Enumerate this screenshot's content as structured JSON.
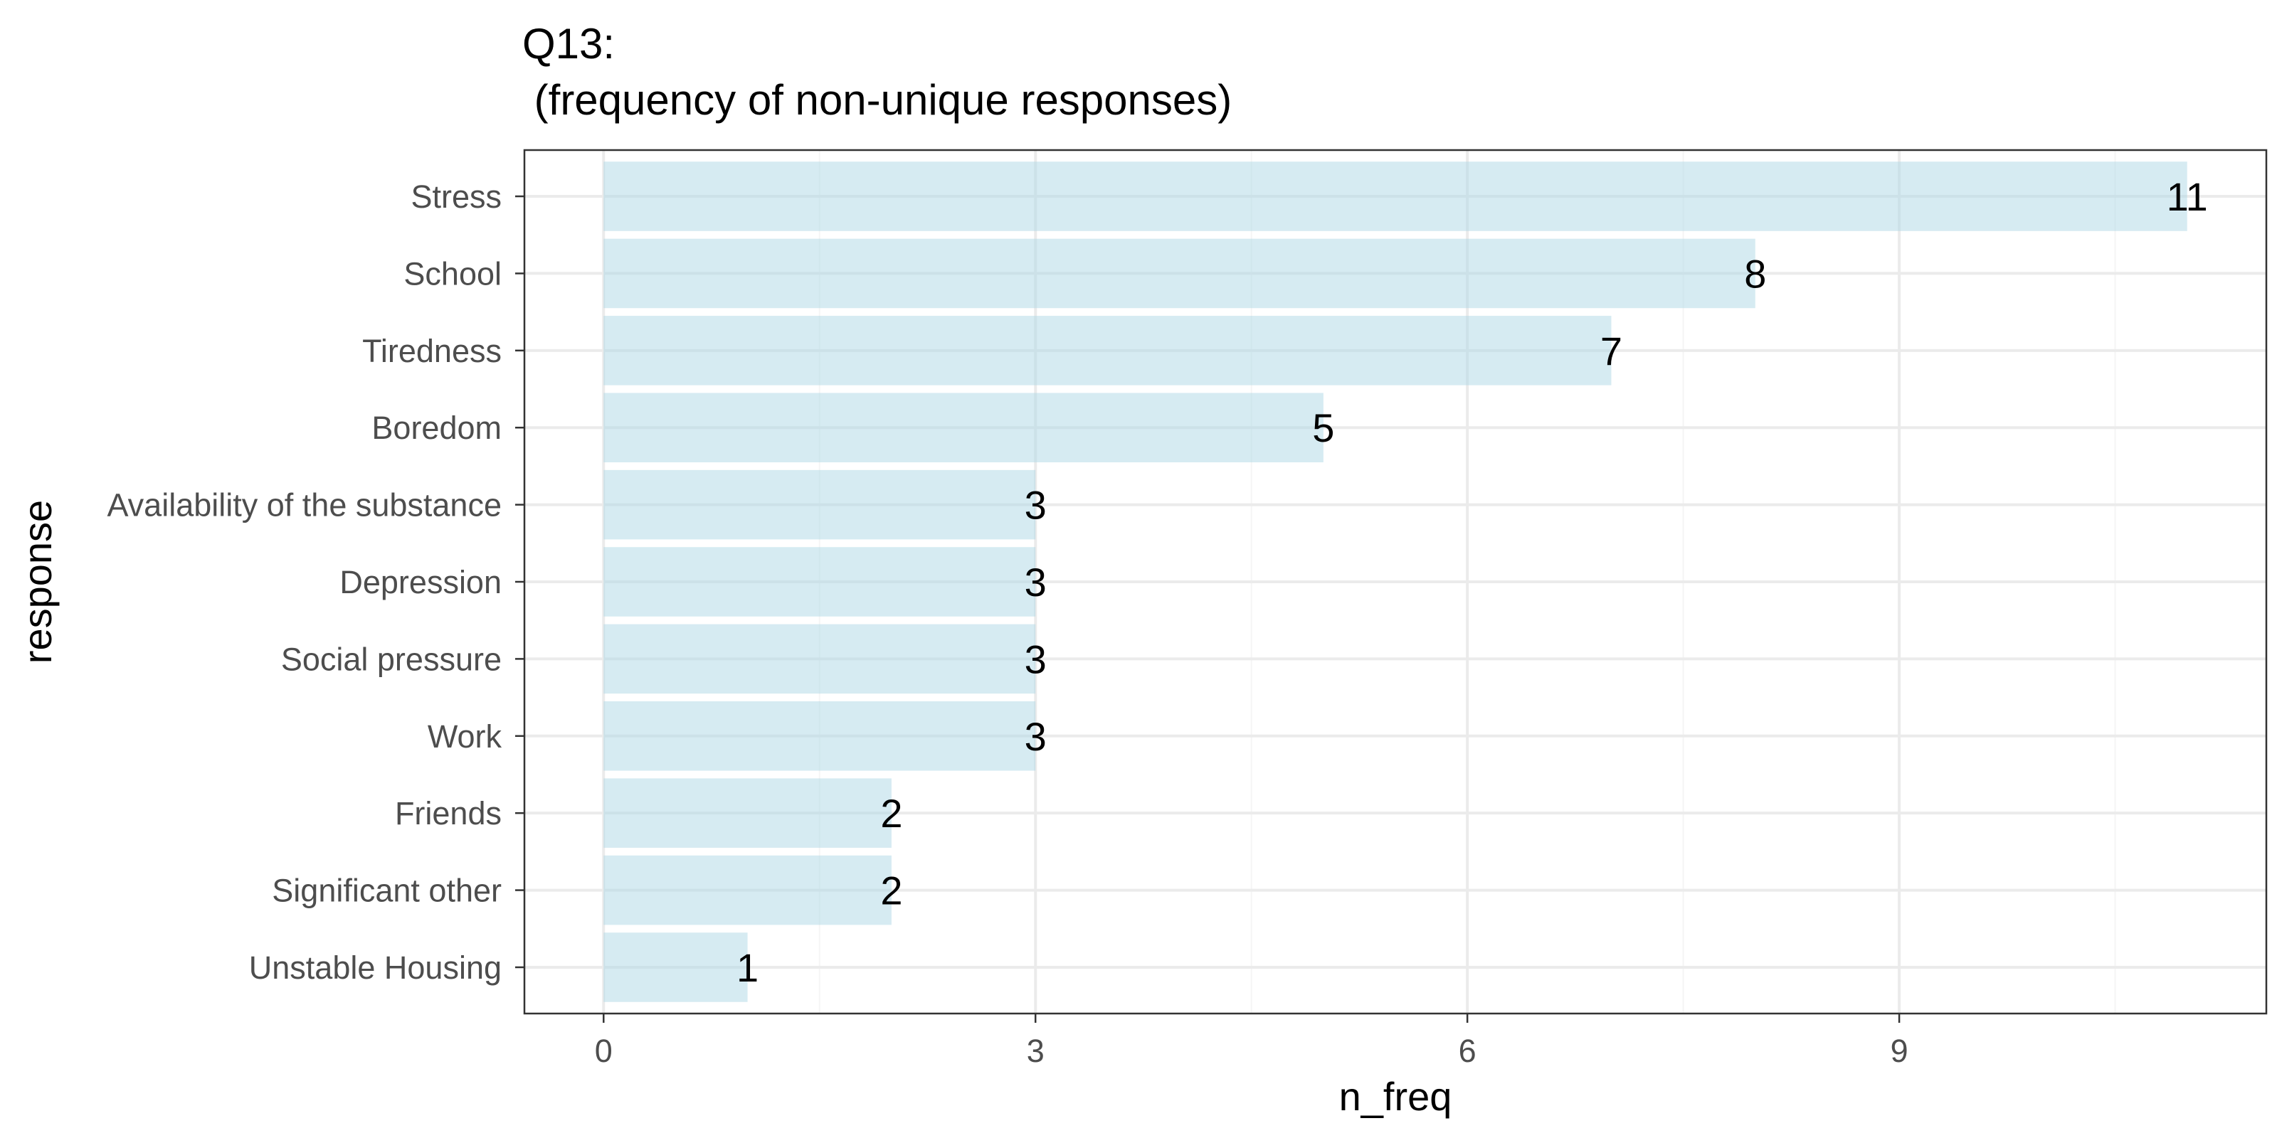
{
  "chart_data": {
    "type": "bar",
    "orientation": "horizontal",
    "title": "Q13:",
    "subtitle": "(frequency of non-unique responses)",
    "xlabel": "n_freq",
    "ylabel": "response",
    "categories": [
      "Stress",
      "School",
      "Tiredness",
      "Boredom",
      "Availability of the substance",
      "Depression",
      "Social pressure",
      "Work",
      "Friends",
      "Significant other",
      "Unstable Housing"
    ],
    "values": [
      11,
      8,
      7,
      5,
      3,
      3,
      3,
      3,
      2,
      2,
      1
    ],
    "data_labels": [
      "11",
      "8",
      "7",
      "5",
      "3",
      "3",
      "3",
      "3",
      "2",
      "2",
      "1"
    ],
    "xticks": [
      "0",
      "3",
      "6",
      "9"
    ],
    "xtick_values": [
      0,
      3,
      6,
      9
    ],
    "xlim": [
      -0.55,
      11.55
    ],
    "grid": true,
    "legend": "none",
    "colors": {
      "bar": "#add8e6",
      "panel_border": "#333333",
      "grid_major": "#ebebeb",
      "grid_minor": "#f5f5f5"
    }
  }
}
